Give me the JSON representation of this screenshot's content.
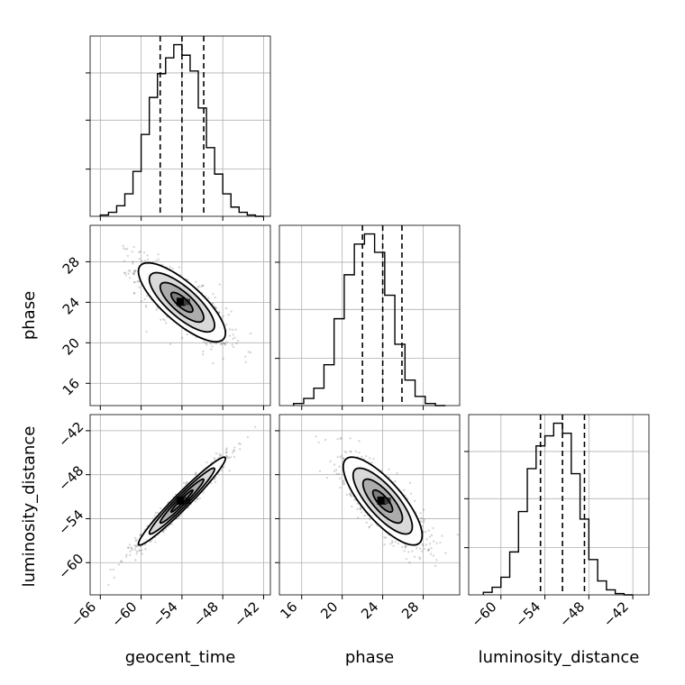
{
  "chart_data": {
    "type": "corner",
    "parameters": [
      {
        "key": "geocent_time",
        "label": "geocent_time",
        "range": [
          -67.5,
          -41
        ],
        "ticks": [
          -66,
          -60,
          -54,
          -48,
          -42
        ],
        "tick_labels": [
          "−66",
          "−60",
          "−54",
          "−48",
          "−42"
        ],
        "median": -54,
        "q16": -57.2,
        "q84": -50.8
      },
      {
        "key": "phase",
        "label": "phase",
        "range": [
          13.8,
          31.6
        ],
        "ticks": [
          16,
          20,
          24,
          28
        ],
        "tick_labels": [
          "16",
          "20",
          "24",
          "28"
        ],
        "median": 24,
        "q16": 22.0,
        "q84": 25.9
      },
      {
        "key": "luminosity_distance",
        "label": "luminosity_distance",
        "range": [
          -64.4,
          -39.8
        ],
        "ticks": [
          -60,
          -54,
          -48,
          -42
        ],
        "tick_labels": [
          "−60",
          "−54",
          "−48",
          "−42"
        ],
        "median": -51.6,
        "q16": -54.6,
        "q84": -48.6
      }
    ],
    "histograms": [
      {
        "param": "geocent_time",
        "bin_edges": [
          -66,
          -64.8,
          -63.6,
          -62.4,
          -61.2,
          -60,
          -58.8,
          -57.6,
          -56.4,
          -55.2,
          -54,
          -52.8,
          -51.6,
          -50.4,
          -49.2,
          -48,
          -46.8,
          -45.6,
          -44.4,
          -43.2,
          -42
        ],
        "counts": [
          1,
          3,
          8,
          17,
          34,
          62,
          90,
          108,
          120,
          130,
          122,
          110,
          82,
          52,
          32,
          17,
          7,
          3,
          1,
          0
        ]
      },
      {
        "param": "phase",
        "bin_edges": [
          15.2,
          16.2,
          17.2,
          18.2,
          19.2,
          20.2,
          21.2,
          22.2,
          23.2,
          24.2,
          25.2,
          26.2,
          27.2,
          28.2,
          29.2,
          30.2
        ],
        "counts": [
          2,
          7,
          17,
          40,
          85,
          128,
          158,
          168,
          150,
          108,
          60,
          25,
          9,
          2,
          0
        ]
      },
      {
        "param": "luminosity_distance",
        "bin_edges": [
          -62.4,
          -61.2,
          -60,
          -58.8,
          -57.6,
          -56.4,
          -55.2,
          -54,
          -52.8,
          -51.6,
          -50.4,
          -49.2,
          -48,
          -46.8,
          -45.6,
          -44.4,
          -43.2,
          -42
        ],
        "counts": [
          2,
          6,
          14,
          34,
          66,
          100,
          118,
          126,
          136,
          128,
          96,
          60,
          28,
          11,
          4,
          1,
          0
        ]
      }
    ],
    "correlations": {
      "geocent_time|phase": -0.78,
      "geocent_time|luminosity_distance": 0.97,
      "phase|luminosity_distance": -0.78
    },
    "contour_levels": [
      "0.5-sigma",
      "1-sigma",
      "1.5-sigma",
      "2-sigma"
    ],
    "grid": true
  }
}
